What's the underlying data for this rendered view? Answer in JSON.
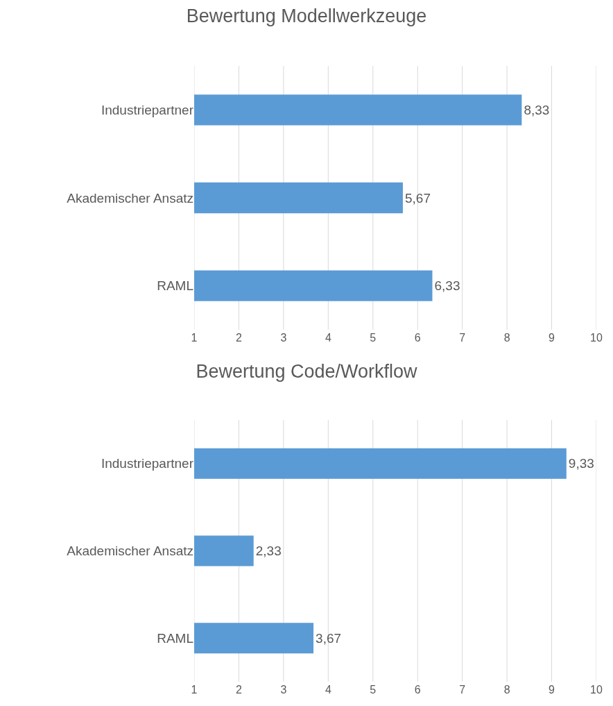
{
  "chart_data": [
    {
      "type": "bar",
      "orientation": "horizontal",
      "title": "Bewertung Modellwerkzeuge",
      "categories": [
        "Industriepartner",
        "Akademischer Ansatz",
        "RAML"
      ],
      "values": [
        8.33,
        5.67,
        6.33
      ],
      "value_labels": [
        "8,33",
        "5,67",
        "6,33"
      ],
      "color": "#5b9bd5",
      "xlim": [
        1,
        10
      ],
      "xticks": [
        1,
        2,
        3,
        4,
        5,
        6,
        7,
        8,
        9,
        10
      ],
      "grid": "x"
    },
    {
      "type": "bar",
      "orientation": "horizontal",
      "title": "Bewertung Code/Workflow",
      "categories": [
        "Industriepartner",
        "Akademischer Ansatz",
        "RAML"
      ],
      "values": [
        9.33,
        2.33,
        3.67
      ],
      "value_labels": [
        "9,33",
        "2,33",
        "3,67"
      ],
      "color": "#5b9bd5",
      "xlim": [
        1,
        10
      ],
      "xticks": [
        1,
        2,
        3,
        4,
        5,
        6,
        7,
        8,
        9,
        10
      ],
      "grid": "x"
    }
  ]
}
